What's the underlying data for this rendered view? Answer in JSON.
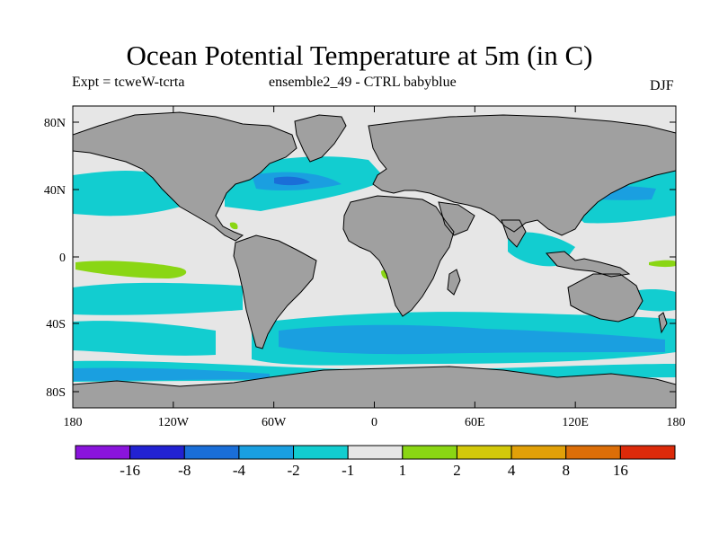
{
  "title": "Ocean Potential Temperature at 5m (in C)",
  "subtitle_left": "Expt = tcweW-tcrta",
  "subtitle_center": "ensemble2_49 - CTRL babyblue",
  "season": "DJF",
  "lat_ticks": [
    "80N",
    "40N",
    "0",
    "40S",
    "80S"
  ],
  "lon_ticks": [
    "180",
    "120W",
    "60W",
    "0",
    "60E",
    "120E",
    "180"
  ],
  "colorbar": {
    "colors": [
      "#8a14dc",
      "#2222d2",
      "#1a6ed8",
      "#1a9fe0",
      "#12cdd0",
      "#e6e6e6",
      "#8ad614",
      "#d2c80a",
      "#e1a008",
      "#dc6e08",
      "#dc2a0a"
    ],
    "labels": [
      "-16",
      "-8",
      "-4",
      "-2",
      "-1",
      "1",
      "2",
      "4",
      "8",
      "16"
    ]
  },
  "map_colors": {
    "ocean_neutral": "#e6e6e6",
    "land": "#a0a0a0",
    "cool_light": "#12cdd0",
    "cool_mid": "#1a9fe0",
    "cool_dark": "#1a6ed8",
    "warm_light": "#8ad614"
  }
}
